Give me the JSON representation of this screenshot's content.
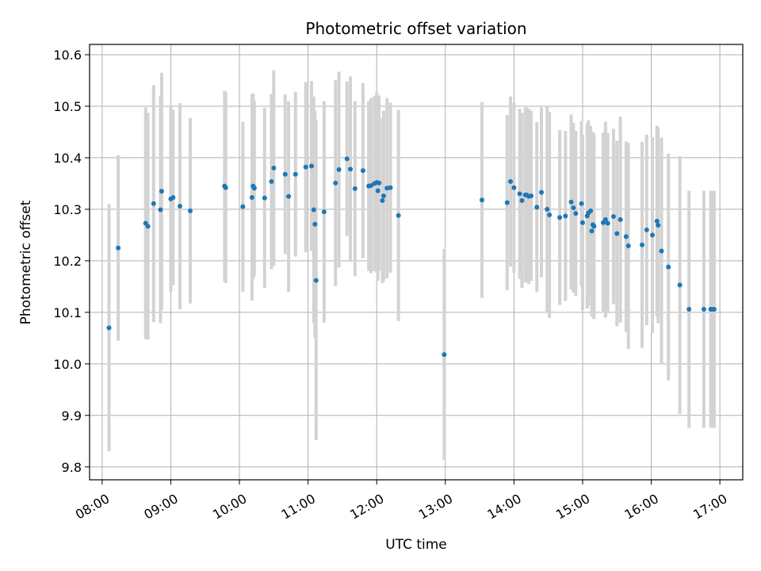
{
  "chart_data": {
    "type": "scatter",
    "title": "Photometric offset variation",
    "xlabel": "UTC time",
    "ylabel": "Photometric offset",
    "x_tick_labels": [
      "08:00",
      "09:00",
      "10:00",
      "11:00",
      "12:00",
      "13:00",
      "14:00",
      "15:00",
      "16:00",
      "17:00"
    ],
    "y_ticks": [
      9.8,
      9.9,
      10.0,
      10.1,
      10.2,
      10.3,
      10.4,
      10.5,
      10.6
    ],
    "y_tick_labels": [
      "9.8",
      "9.9",
      "10.0",
      "10.1",
      "10.2",
      "10.3",
      "10.4",
      "10.5",
      "10.6"
    ],
    "xlim": [
      "07:49",
      "17:20"
    ],
    "ylim": [
      9.775,
      10.62
    ],
    "grid": true,
    "colors": {
      "point": "#1f77b4",
      "errorbar": "#d3d3d3",
      "grid": "#b0b0b0"
    },
    "series": [
      {
        "x": [
          "08:06",
          "08:14",
          "08:38",
          "08:40",
          "08:45",
          "08:51",
          "08:52",
          "09:00",
          "09:02",
          "09:08",
          "09:17",
          "09:47",
          "09:48",
          "10:03",
          "10:11",
          "10:12",
          "10:13",
          "10:22",
          "10:28",
          "10:30",
          "10:40",
          "10:43",
          "10:49",
          "10:58",
          "11:03",
          "11:05",
          "11:06",
          "11:07",
          "11:14",
          "11:24",
          "11:27",
          "11:34",
          "11:37",
          "11:41",
          "11:48",
          "11:53",
          "11:55",
          "11:58",
          "12:00",
          "12:01",
          "12:02",
          "12:05",
          "12:06",
          "12:09",
          "12:12",
          "12:19",
          "12:59",
          "13:32",
          "13:54",
          "13:57",
          "14:00",
          "14:05",
          "14:07",
          "14:10",
          "14:11",
          "14:13",
          "14:15",
          "14:20",
          "14:24",
          "14:29",
          "14:31",
          "14:40",
          "14:45",
          "14:50",
          "14:52",
          "14:54",
          "14:59",
          "15:00",
          "15:04",
          "15:05",
          "15:07",
          "15:08",
          "15:09",
          "15:10",
          "15:18",
          "15:20",
          "15:22",
          "15:27",
          "15:30",
          "15:33",
          "15:38",
          "15:40",
          "15:52",
          "15:56",
          "16:01",
          "16:05",
          "16:06",
          "16:09",
          "16:15",
          "16:25",
          "16:33",
          "16:46",
          "16:52",
          "16:53",
          "16:55"
        ],
        "y": [
          10.07,
          10.225,
          10.273,
          10.267,
          10.311,
          10.299,
          10.335,
          10.32,
          10.323,
          10.306,
          10.297,
          10.345,
          10.342,
          10.305,
          10.323,
          10.345,
          10.341,
          10.322,
          10.354,
          10.38,
          10.368,
          10.325,
          10.368,
          10.382,
          10.384,
          10.299,
          10.271,
          10.162,
          10.295,
          10.351,
          10.377,
          10.398,
          10.378,
          10.34,
          10.375,
          10.345,
          10.346,
          10.35,
          10.352,
          10.336,
          10.351,
          10.317,
          10.326,
          10.341,
          10.342,
          10.288,
          10.018,
          10.318,
          10.313,
          10.354,
          10.342,
          10.33,
          10.317,
          10.328,
          10.328,
          10.325,
          10.326,
          10.304,
          10.333,
          10.3,
          10.289,
          10.284,
          10.287,
          10.314,
          10.303,
          10.292,
          10.311,
          10.274,
          10.287,
          10.293,
          10.297,
          10.258,
          10.27,
          10.267,
          10.274,
          10.28,
          10.273,
          10.286,
          10.253,
          10.28,
          10.247,
          10.229,
          10.231,
          10.26,
          10.25,
          10.277,
          10.269,
          10.219,
          10.188,
          10.153,
          10.106,
          10.106,
          10.106,
          10.106,
          10.106
        ],
        "yerr": [
          0.24,
          0.18,
          0.225,
          0.22,
          0.23,
          0.22,
          0.23,
          0.18,
          0.17,
          0.2,
          0.18,
          0.185,
          0.185,
          0.165,
          0.2,
          0.18,
          0.17,
          0.175,
          0.17,
          0.19,
          0.155,
          0.185,
          0.16,
          0.165,
          0.165,
          0.22,
          0.22,
          0.31,
          0.215,
          0.2,
          0.19,
          0.15,
          0.18,
          0.17,
          0.17,
          0.165,
          0.17,
          0.17,
          0.175,
          0.175,
          0.17,
          0.16,
          0.165,
          0.175,
          0.165,
          0.205,
          0.205,
          0.19,
          0.17,
          0.165,
          0.165,
          0.165,
          0.17,
          0.17,
          0.17,
          0.17,
          0.165,
          0.165,
          0.165,
          0.2,
          0.2,
          0.17,
          0.165,
          0.17,
          0.165,
          0.16,
          0.16,
          0.17,
          0.18,
          0.18,
          0.165,
          0.165,
          0.18,
          0.18,
          0.175,
          0.19,
          0.175,
          0.17,
          0.18,
          0.2,
          0.185,
          0.2,
          0.2,
          0.185,
          0.19,
          0.185,
          0.19,
          0.22,
          0.22,
          0.25,
          0.23,
          0.23,
          0.23,
          0.23,
          0.23
        ]
      }
    ]
  }
}
